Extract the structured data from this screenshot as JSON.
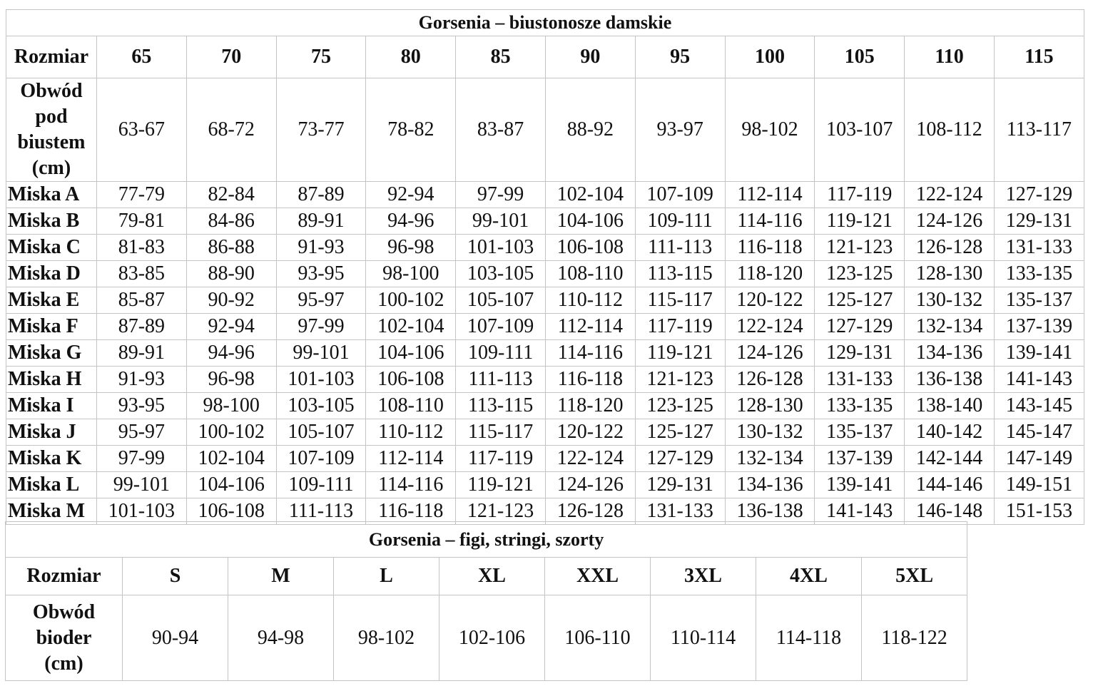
{
  "bras": {
    "title": "Gorsenia – biustonosze damskie",
    "size_label": "Rozmiar",
    "sizes": [
      "65",
      "70",
      "75",
      "80",
      "85",
      "90",
      "95",
      "100",
      "105",
      "110",
      "115"
    ],
    "underbust_label": [
      "Obwód",
      "pod",
      "biustem",
      "(cm)"
    ],
    "underbust": [
      "63-67",
      "68-72",
      "73-77",
      "78-82",
      "83-87",
      "88-92",
      "93-97",
      "98-102",
      "103-107",
      "108-112",
      "113-117"
    ],
    "cups": [
      {
        "label": "Miska A",
        "values": [
          "77-79",
          "82-84",
          "87-89",
          "92-94",
          "97-99",
          "102-104",
          "107-109",
          "112-114",
          "117-119",
          "122-124",
          "127-129"
        ]
      },
      {
        "label": "Miska B",
        "values": [
          "79-81",
          "84-86",
          "89-91",
          "94-96",
          "99-101",
          "104-106",
          "109-111",
          "114-116",
          "119-121",
          "124-126",
          "129-131"
        ]
      },
      {
        "label": "Miska C",
        "values": [
          "81-83",
          "86-88",
          "91-93",
          "96-98",
          "101-103",
          "106-108",
          "111-113",
          "116-118",
          "121-123",
          "126-128",
          "131-133"
        ]
      },
      {
        "label": "Miska D",
        "values": [
          "83-85",
          "88-90",
          "93-95",
          "98-100",
          "103-105",
          "108-110",
          "113-115",
          "118-120",
          "123-125",
          "128-130",
          "133-135"
        ]
      },
      {
        "label": "Miska E",
        "values": [
          "85-87",
          "90-92",
          "95-97",
          "100-102",
          "105-107",
          "110-112",
          "115-117",
          "120-122",
          "125-127",
          "130-132",
          "135-137"
        ]
      },
      {
        "label": "Miska F",
        "values": [
          "87-89",
          "92-94",
          "97-99",
          "102-104",
          "107-109",
          "112-114",
          "117-119",
          "122-124",
          "127-129",
          "132-134",
          "137-139"
        ]
      },
      {
        "label": "Miska G",
        "values": [
          "89-91",
          "94-96",
          "99-101",
          "104-106",
          "109-111",
          "114-116",
          "119-121",
          "124-126",
          "129-131",
          "134-136",
          "139-141"
        ]
      },
      {
        "label": "Miska H",
        "values": [
          "91-93",
          "96-98",
          "101-103",
          "106-108",
          "111-113",
          "116-118",
          "121-123",
          "126-128",
          "131-133",
          "136-138",
          "141-143"
        ]
      },
      {
        "label": "Miska I",
        "values": [
          "93-95",
          "98-100",
          "103-105",
          "108-110",
          "113-115",
          "118-120",
          "123-125",
          "128-130",
          "133-135",
          "138-140",
          "143-145"
        ]
      },
      {
        "label": "Miska J",
        "values": [
          "95-97",
          "100-102",
          "105-107",
          "110-112",
          "115-117",
          "120-122",
          "125-127",
          "130-132",
          "135-137",
          "140-142",
          "145-147"
        ]
      },
      {
        "label": "Miska K",
        "values": [
          "97-99",
          "102-104",
          "107-109",
          "112-114",
          "117-119",
          "122-124",
          "127-129",
          "132-134",
          "137-139",
          "142-144",
          "147-149"
        ]
      },
      {
        "label": "Miska L",
        "values": [
          "99-101",
          "104-106",
          "109-111",
          "114-116",
          "119-121",
          "124-126",
          "129-131",
          "134-136",
          "139-141",
          "144-146",
          "149-151"
        ]
      },
      {
        "label": "Miska M",
        "values": [
          "101-103",
          "106-108",
          "111-113",
          "116-118",
          "121-123",
          "126-128",
          "131-133",
          "136-138",
          "141-143",
          "146-148",
          "151-153"
        ]
      }
    ]
  },
  "briefs": {
    "title": "Gorsenia – figi, stringi, szorty",
    "size_label": "Rozmiar",
    "sizes": [
      "S",
      "M",
      "L",
      "XL",
      "XXL",
      "3XL",
      "4XL",
      "5XL"
    ],
    "hip_label": [
      "Obwód",
      "bioder",
      "(cm)"
    ],
    "hips": [
      "90-94",
      "94-98",
      "98-102",
      "102-106",
      "106-110",
      "110-114",
      "114-118",
      "118-122"
    ]
  }
}
